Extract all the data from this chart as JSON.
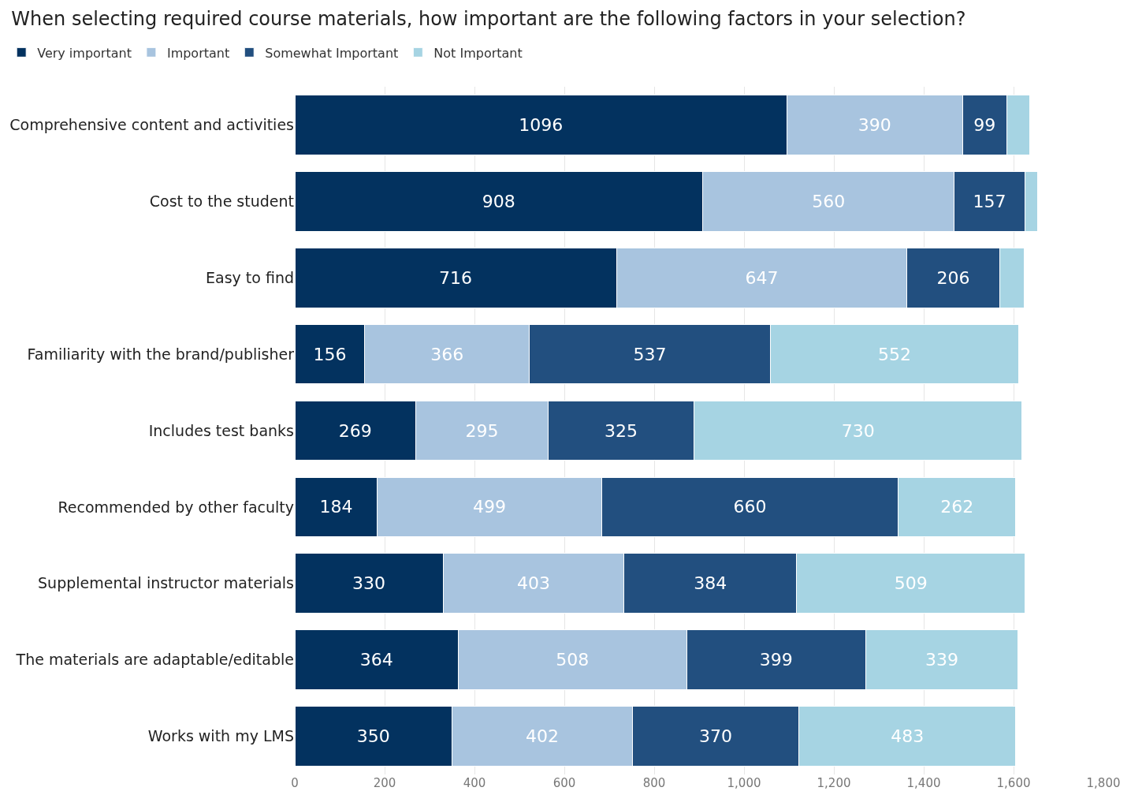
{
  "chart_data": {
    "type": "bar",
    "orientation": "horizontal",
    "stacked": true,
    "title": "When selecting required course materials, how important are the following factors in your selection?",
    "categories": [
      "Comprehensive content and activities",
      "Cost to the student",
      "Easy to find",
      "Familiarity with the brand/publisher",
      "Includes test banks",
      "Recommended by other faculty",
      "Supplemental instructor materials",
      "The materials are adaptable/editable",
      "Works with my LMS"
    ],
    "series": [
      {
        "name": "Very important",
        "color": "#03325f",
        "values": [
          1096,
          908,
          716,
          156,
          269,
          184,
          330,
          364,
          350
        ],
        "value_labels": [
          "1096",
          "908",
          "716",
          "156",
          "269",
          "184",
          "330",
          "364",
          "350"
        ]
      },
      {
        "name": "Important",
        "color": "#a8c4df",
        "values": [
          390,
          560,
          647,
          366,
          295,
          499,
          403,
          508,
          402
        ],
        "value_labels": [
          "390",
          "560",
          "647",
          "366",
          "295",
          "499",
          "403",
          "508",
          "402"
        ]
      },
      {
        "name": "Somewhat Important",
        "color": "#224f7f",
        "values": [
          99,
          157,
          206,
          537,
          325,
          660,
          384,
          399,
          370
        ],
        "value_labels": [
          "99",
          "157",
          "206",
          "537",
          "325",
          "660",
          "384",
          "399",
          "370"
        ]
      },
      {
        "name": "Not Important",
        "color": "#a6d4e3",
        "values": [
          51,
          28,
          54,
          552,
          730,
          262,
          509,
          339,
          483
        ],
        "value_labels": [
          null,
          null,
          null,
          "552",
          "730",
          "262",
          "509",
          "339",
          "483"
        ]
      }
    ],
    "xlim": [
      0,
      1800
    ],
    "xticks": [
      0,
      {
        "value": 200,
        "label": "200"
      },
      400,
      600,
      800,
      {
        "value": 1000,
        "label": "1,000"
      },
      {
        "value": 1200,
        "label": "1,200"
      },
      {
        "value": 1400,
        "label": "1,400"
      },
      {
        "value": 1600,
        "label": "1,600"
      },
      {
        "value": 1800,
        "label": "1,800"
      }
    ],
    "grid": "x",
    "legend": "top left"
  }
}
